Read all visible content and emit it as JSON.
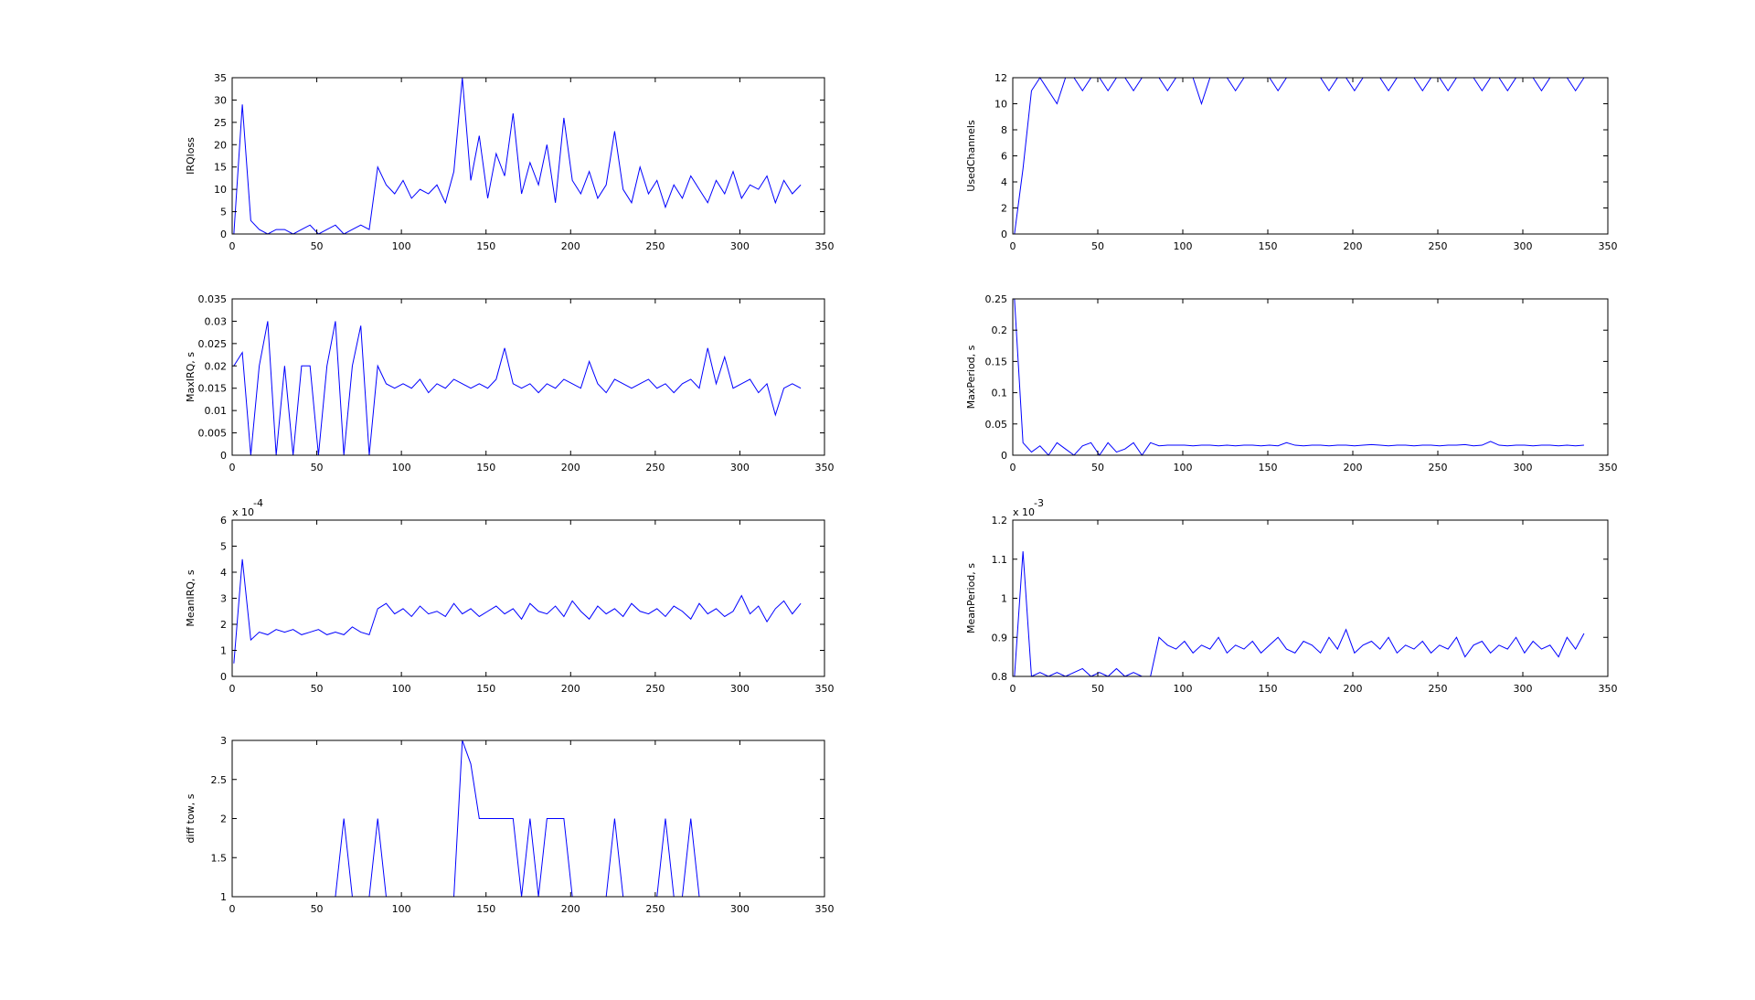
{
  "chart_data": [
    {
      "type": "line",
      "ylabel": "IRQloss",
      "color": "#0000ff",
      "xlim": [
        0,
        350
      ],
      "xticks": [
        0,
        50,
        100,
        150,
        200,
        250,
        300,
        350
      ],
      "ylim": [
        0,
        35
      ],
      "yticks": [
        0,
        5,
        10,
        15,
        20,
        25,
        30,
        35
      ],
      "x": [
        1,
        6,
        11,
        16,
        21,
        26,
        31,
        36,
        41,
        46,
        51,
        56,
        61,
        66,
        71,
        76,
        81,
        86,
        91,
        96,
        101,
        106,
        111,
        116,
        121,
        126,
        131,
        136,
        141,
        146,
        151,
        156,
        161,
        166,
        171,
        176,
        181,
        186,
        191,
        196,
        201,
        206,
        211,
        216,
        221,
        226,
        231,
        236,
        241,
        246,
        251,
        256,
        261,
        266,
        271,
        276,
        281,
        286,
        291,
        296,
        301,
        306,
        311,
        316,
        321,
        326,
        331,
        336
      ],
      "values": [
        0,
        29,
        3,
        1,
        0,
        1,
        1,
        0,
        1,
        2,
        0,
        1,
        2,
        0,
        1,
        2,
        1,
        15,
        11,
        9,
        12,
        8,
        10,
        9,
        11,
        7,
        14,
        35,
        12,
        22,
        8,
        18,
        13,
        27,
        9,
        16,
        11,
        20,
        7,
        26,
        12,
        9,
        14,
        8,
        11,
        23,
        10,
        7,
        15,
        9,
        12,
        6,
        11,
        8,
        13,
        10,
        7,
        12,
        9,
        14,
        8,
        11,
        10,
        13,
        7,
        12,
        9,
        11
      ]
    },
    {
      "type": "line",
      "ylabel": "UsedChannels",
      "color": "#0000ff",
      "xlim": [
        0,
        350
      ],
      "xticks": [
        0,
        50,
        100,
        150,
        200,
        250,
        300,
        350
      ],
      "ylim": [
        0,
        12
      ],
      "yticks": [
        0,
        2,
        4,
        6,
        8,
        10,
        12
      ],
      "x": [
        1,
        6,
        11,
        16,
        21,
        26,
        31,
        36,
        41,
        46,
        51,
        56,
        61,
        66,
        71,
        76,
        81,
        86,
        91,
        96,
        101,
        106,
        111,
        116,
        121,
        126,
        131,
        136,
        141,
        146,
        151,
        156,
        161,
        166,
        171,
        176,
        181,
        186,
        191,
        196,
        201,
        206,
        211,
        216,
        221,
        226,
        231,
        236,
        241,
        246,
        251,
        256,
        261,
        266,
        271,
        276,
        281,
        286,
        291,
        296,
        301,
        306,
        311,
        316,
        321,
        326,
        331,
        336
      ],
      "values": [
        0,
        5,
        11,
        12,
        11,
        10,
        12,
        12,
        11,
        12,
        12,
        11,
        12,
        12,
        11,
        12,
        12,
        12,
        11,
        12,
        12,
        12,
        10,
        12,
        12,
        12,
        11,
        12,
        12,
        12,
        12,
        11,
        12,
        12,
        12,
        12,
        12,
        11,
        12,
        12,
        11,
        12,
        12,
        12,
        11,
        12,
        12,
        12,
        11,
        12,
        12,
        11,
        12,
        12,
        12,
        11,
        12,
        12,
        11,
        12,
        12,
        12,
        11,
        12,
        12,
        12,
        11,
        12
      ]
    },
    {
      "type": "line",
      "ylabel": "MaxIRQ, s",
      "color": "#0000ff",
      "xlim": [
        0,
        350
      ],
      "xticks": [
        0,
        50,
        100,
        150,
        200,
        250,
        300,
        350
      ],
      "ylim": [
        0,
        0.035
      ],
      "yticks": [
        0,
        0.005,
        0.01,
        0.015,
        0.02,
        0.025,
        0.03,
        0.035
      ],
      "x": [
        1,
        6,
        11,
        16,
        21,
        26,
        31,
        36,
        41,
        46,
        51,
        56,
        61,
        66,
        71,
        76,
        81,
        86,
        91,
        96,
        101,
        106,
        111,
        116,
        121,
        126,
        131,
        136,
        141,
        146,
        151,
        156,
        161,
        166,
        171,
        176,
        181,
        186,
        191,
        196,
        201,
        206,
        211,
        216,
        221,
        226,
        231,
        236,
        241,
        246,
        251,
        256,
        261,
        266,
        271,
        276,
        281,
        286,
        291,
        296,
        301,
        306,
        311,
        316,
        321,
        326,
        331,
        336
      ],
      "values": [
        0.02,
        0.023,
        0,
        0.02,
        0.03,
        0,
        0.02,
        0,
        0.02,
        0.02,
        0,
        0.02,
        0.03,
        0,
        0.02,
        0.029,
        0,
        0.02,
        0.016,
        0.015,
        0.016,
        0.015,
        0.017,
        0.014,
        0.016,
        0.015,
        0.017,
        0.016,
        0.015,
        0.016,
        0.015,
        0.017,
        0.024,
        0.016,
        0.015,
        0.016,
        0.014,
        0.016,
        0.015,
        0.017,
        0.016,
        0.015,
        0.021,
        0.016,
        0.014,
        0.017,
        0.016,
        0.015,
        0.016,
        0.017,
        0.015,
        0.016,
        0.014,
        0.016,
        0.017,
        0.015,
        0.024,
        0.016,
        0.022,
        0.015,
        0.016,
        0.017,
        0.014,
        0.016,
        0.009,
        0.015,
        0.016,
        0.015
      ]
    },
    {
      "type": "line",
      "ylabel": "MaxPeriod, s",
      "color": "#0000ff",
      "xlim": [
        0,
        350
      ],
      "xticks": [
        0,
        50,
        100,
        150,
        200,
        250,
        300,
        350
      ],
      "ylim": [
        0,
        0.25
      ],
      "yticks": [
        0,
        0.05,
        0.1,
        0.15,
        0.2,
        0.25
      ],
      "x": [
        1,
        6,
        11,
        16,
        21,
        26,
        31,
        36,
        41,
        46,
        51,
        56,
        61,
        66,
        71,
        76,
        81,
        86,
        91,
        96,
        101,
        106,
        111,
        116,
        121,
        126,
        131,
        136,
        141,
        146,
        151,
        156,
        161,
        166,
        171,
        176,
        181,
        186,
        191,
        196,
        201,
        206,
        211,
        216,
        221,
        226,
        231,
        236,
        241,
        246,
        251,
        256,
        261,
        266,
        271,
        276,
        281,
        286,
        291,
        296,
        301,
        306,
        311,
        316,
        321,
        326,
        331,
        336
      ],
      "values": [
        0.25,
        0.02,
        0.005,
        0.015,
        0,
        0.02,
        0.01,
        0,
        0.015,
        0.02,
        0,
        0.02,
        0.005,
        0.01,
        0.02,
        0,
        0.02,
        0.015,
        0.016,
        0.016,
        0.016,
        0.015,
        0.016,
        0.016,
        0.015,
        0.016,
        0.015,
        0.016,
        0.016,
        0.015,
        0.016,
        0.015,
        0.02,
        0.016,
        0.015,
        0.016,
        0.016,
        0.015,
        0.016,
        0.016,
        0.015,
        0.016,
        0.017,
        0.016,
        0.015,
        0.016,
        0.016,
        0.015,
        0.016,
        0.016,
        0.015,
        0.016,
        0.016,
        0.017,
        0.015,
        0.016,
        0.022,
        0.016,
        0.015,
        0.016,
        0.016,
        0.015,
        0.016,
        0.016,
        0.015,
        0.016,
        0.015,
        0.016
      ]
    },
    {
      "type": "line",
      "ylabel": "MeanIRQ, s",
      "y_multiplier": "x 10",
      "y_exponent": "-4",
      "color": "#0000ff",
      "xlim": [
        0,
        350
      ],
      "xticks": [
        0,
        50,
        100,
        150,
        200,
        250,
        300,
        350
      ],
      "ylim": [
        0,
        6
      ],
      "yticks": [
        0,
        1,
        2,
        3,
        4,
        5,
        6
      ],
      "x": [
        1,
        6,
        11,
        16,
        21,
        26,
        31,
        36,
        41,
        46,
        51,
        56,
        61,
        66,
        71,
        76,
        81,
        86,
        91,
        96,
        101,
        106,
        111,
        116,
        121,
        126,
        131,
        136,
        141,
        146,
        151,
        156,
        161,
        166,
        171,
        176,
        181,
        186,
        191,
        196,
        201,
        206,
        211,
        216,
        221,
        226,
        231,
        236,
        241,
        246,
        251,
        256,
        261,
        266,
        271,
        276,
        281,
        286,
        291,
        296,
        301,
        306,
        311,
        316,
        321,
        326,
        331,
        336
      ],
      "values": [
        0.5,
        4.5,
        1.4,
        1.7,
        1.6,
        1.8,
        1.7,
        1.8,
        1.6,
        1.7,
        1.8,
        1.6,
        1.7,
        1.6,
        1.9,
        1.7,
        1.6,
        2.6,
        2.8,
        2.4,
        2.6,
        2.3,
        2.7,
        2.4,
        2.5,
        2.3,
        2.8,
        2.4,
        2.6,
        2.3,
        2.5,
        2.7,
        2.4,
        2.6,
        2.2,
        2.8,
        2.5,
        2.4,
        2.7,
        2.3,
        2.9,
        2.5,
        2.2,
        2.7,
        2.4,
        2.6,
        2.3,
        2.8,
        2.5,
        2.4,
        2.6,
        2.3,
        2.7,
        2.5,
        2.2,
        2.8,
        2.4,
        2.6,
        2.3,
        2.5,
        3.1,
        2.4,
        2.7,
        2.1,
        2.6,
        2.9,
        2.4,
        2.8
      ]
    },
    {
      "type": "line",
      "ylabel": "MeanPeriod, s",
      "y_multiplier": "x 10",
      "y_exponent": "-3",
      "color": "#0000ff",
      "xlim": [
        0,
        350
      ],
      "xticks": [
        0,
        50,
        100,
        150,
        200,
        250,
        300,
        350
      ],
      "ylim": [
        0.8,
        1.2
      ],
      "yticks": [
        0.8,
        0.9,
        1,
        1.1,
        1.2
      ],
      "x": [
        1,
        6,
        11,
        16,
        21,
        26,
        31,
        36,
        41,
        46,
        51,
        56,
        61,
        66,
        71,
        76,
        81,
        86,
        91,
        96,
        101,
        106,
        111,
        116,
        121,
        126,
        131,
        136,
        141,
        146,
        151,
        156,
        161,
        166,
        171,
        176,
        181,
        186,
        191,
        196,
        201,
        206,
        211,
        216,
        221,
        226,
        231,
        236,
        241,
        246,
        251,
        256,
        261,
        266,
        271,
        276,
        281,
        286,
        291,
        296,
        301,
        306,
        311,
        316,
        321,
        326,
        331,
        336
      ],
      "values": [
        0.8,
        1.12,
        0.8,
        0.81,
        0.8,
        0.81,
        0.8,
        0.81,
        0.82,
        0.8,
        0.81,
        0.8,
        0.82,
        0.8,
        0.81,
        0.8,
        0.8,
        0.9,
        0.88,
        0.87,
        0.89,
        0.86,
        0.88,
        0.87,
        0.9,
        0.86,
        0.88,
        0.87,
        0.89,
        0.86,
        0.88,
        0.9,
        0.87,
        0.86,
        0.89,
        0.88,
        0.86,
        0.9,
        0.87,
        0.92,
        0.86,
        0.88,
        0.89,
        0.87,
        0.9,
        0.86,
        0.88,
        0.87,
        0.89,
        0.86,
        0.88,
        0.87,
        0.9,
        0.85,
        0.88,
        0.89,
        0.86,
        0.88,
        0.87,
        0.9,
        0.86,
        0.89,
        0.87,
        0.88,
        0.85,
        0.9,
        0.87,
        0.91
      ]
    },
    {
      "type": "line",
      "ylabel": "diff tow, s",
      "color": "#0000ff",
      "xlim": [
        0,
        350
      ],
      "xticks": [
        0,
        50,
        100,
        150,
        200,
        250,
        300,
        350
      ],
      "ylim": [
        1,
        3
      ],
      "yticks": [
        1,
        1.5,
        2,
        2.5,
        3
      ],
      "x": [
        1,
        6,
        11,
        16,
        21,
        26,
        31,
        36,
        41,
        46,
        51,
        56,
        61,
        66,
        71,
        76,
        81,
        86,
        91,
        96,
        101,
        106,
        111,
        116,
        121,
        126,
        131,
        136,
        141,
        146,
        151,
        156,
        161,
        166,
        171,
        176,
        181,
        186,
        191,
        196,
        201,
        206,
        211,
        216,
        221,
        226,
        231,
        236,
        241,
        246,
        251,
        256,
        261,
        266,
        271,
        276,
        281,
        286,
        291,
        296,
        301,
        306,
        311,
        316,
        321,
        326,
        331,
        336
      ],
      "values": [
        1,
        1,
        1,
        1,
        1,
        1,
        1,
        1,
        1,
        1,
        1,
        1,
        1,
        2,
        1,
        1,
        1,
        2,
        1,
        1,
        1,
        1,
        1,
        1,
        1,
        1,
        1,
        3,
        2.7,
        2,
        2,
        2,
        2,
        2,
        1,
        2,
        1,
        2,
        2,
        2,
        1,
        1,
        1,
        1,
        1,
        2,
        1,
        1,
        1,
        1,
        1,
        2,
        1,
        1,
        2,
        1,
        1,
        1,
        1,
        1,
        1,
        1,
        1,
        1,
        1,
        1,
        1,
        1
      ]
    }
  ]
}
